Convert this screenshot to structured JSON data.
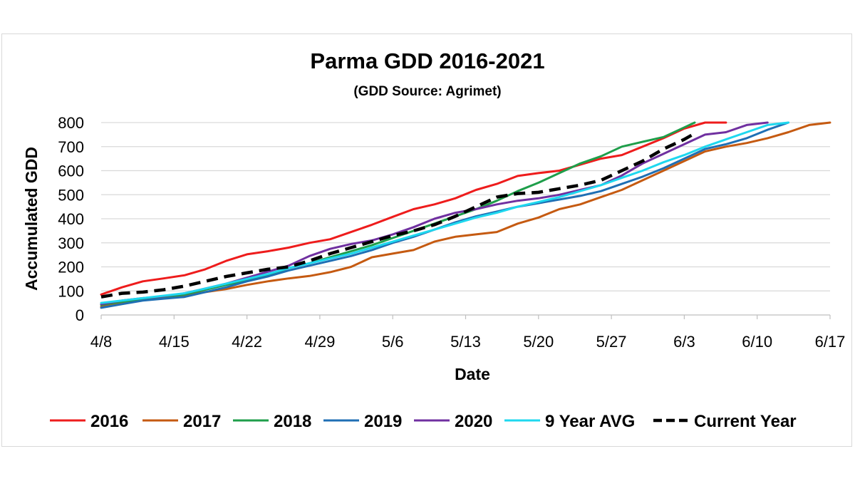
{
  "chart_data": {
    "type": "line",
    "title": "Parma GDD 2016-2021",
    "subtitle": "(GDD Source: Agrimet)",
    "xlabel": "Date",
    "ylabel": "Accumulated GDD",
    "x_tick_labels": [
      "4/8",
      "4/15",
      "4/22",
      "4/29",
      "5/6",
      "5/13",
      "5/20",
      "5/27",
      "6/3",
      "6/10",
      "6/17"
    ],
    "x_range_days": [
      0,
      70
    ],
    "y_ticks": [
      0,
      100,
      200,
      300,
      400,
      500,
      600,
      700,
      800
    ],
    "ylim": [
      0,
      800
    ],
    "grid": "horizontal",
    "legend_position": "bottom",
    "series": [
      {
        "name": "2016",
        "color": "#ee1c1c",
        "dash": "solid",
        "x": [
          0,
          2,
          4,
          6,
          8,
          10,
          12,
          14,
          16,
          18,
          20,
          22,
          24,
          26,
          28,
          30,
          32,
          34,
          36,
          38,
          40,
          42,
          44,
          46,
          48,
          50,
          52,
          54,
          56,
          58,
          60
        ],
        "y": [
          85,
          115,
          140,
          152,
          165,
          190,
          225,
          252,
          265,
          280,
          300,
          315,
          345,
          375,
          408,
          440,
          460,
          485,
          520,
          545,
          578,
          590,
          600,
          625,
          650,
          665,
          700,
          735,
          775,
          800,
          800
        ]
      },
      {
        "name": "2017",
        "color": "#c55a11",
        "dash": "solid",
        "x": [
          0,
          2,
          4,
          6,
          8,
          10,
          12,
          14,
          16,
          18,
          20,
          22,
          24,
          26,
          28,
          30,
          32,
          34,
          36,
          38,
          40,
          42,
          44,
          46,
          48,
          50,
          52,
          54,
          56,
          58,
          60,
          62,
          64,
          66,
          68,
          70
        ],
        "y": [
          35,
          50,
          62,
          70,
          80,
          95,
          108,
          125,
          140,
          152,
          162,
          178,
          200,
          240,
          255,
          270,
          305,
          325,
          335,
          345,
          380,
          405,
          440,
          460,
          490,
          520,
          560,
          600,
          640,
          680,
          700,
          715,
          735,
          760,
          790,
          800
        ]
      },
      {
        "name": "2018",
        "color": "#1e9e4a",
        "dash": "solid",
        "x": [
          0,
          2,
          4,
          6,
          8,
          10,
          12,
          14,
          16,
          18,
          20,
          22,
          24,
          26,
          28,
          30,
          32,
          34,
          36,
          38,
          40,
          42,
          44,
          46,
          48,
          50,
          52,
          54,
          56,
          57
        ],
        "y": [
          42,
          55,
          65,
          75,
          85,
          105,
          125,
          145,
          165,
          195,
          215,
          240,
          265,
          290,
          320,
          350,
          380,
          410,
          440,
          475,
          515,
          550,
          590,
          630,
          660,
          700,
          720,
          740,
          780,
          800
        ]
      },
      {
        "name": "2019",
        "color": "#1f6fb4",
        "dash": "solid",
        "x": [
          0,
          2,
          4,
          6,
          8,
          10,
          12,
          14,
          16,
          18,
          20,
          22,
          24,
          26,
          28,
          30,
          32,
          34,
          36,
          38,
          40,
          42,
          44,
          46,
          48,
          50,
          52,
          54,
          56,
          58,
          60,
          62,
          64,
          66
        ],
        "y": [
          30,
          45,
          60,
          68,
          75,
          95,
          115,
          140,
          160,
          185,
          205,
          225,
          245,
          270,
          300,
          325,
          355,
          385,
          410,
          430,
          450,
          465,
          480,
          495,
          515,
          545,
          575,
          610,
          650,
          690,
          710,
          735,
          770,
          800
        ]
      },
      {
        "name": "2020",
        "color": "#7030a0",
        "dash": "solid",
        "x": [
          0,
          2,
          4,
          6,
          8,
          10,
          12,
          14,
          16,
          18,
          20,
          22,
          24,
          26,
          28,
          30,
          32,
          34,
          36,
          38,
          40,
          42,
          44,
          46,
          48,
          50,
          52,
          54,
          56,
          58,
          60,
          62,
          64
        ],
        "y": [
          45,
          60,
          70,
          78,
          90,
          110,
          130,
          155,
          180,
          205,
          245,
          275,
          295,
          310,
          335,
          365,
          400,
          425,
          440,
          460,
          475,
          485,
          500,
          520,
          540,
          580,
          630,
          670,
          710,
          750,
          760,
          790,
          800
        ]
      },
      {
        "name": "9 Year AVG",
        "color": "#1ed8ef",
        "dash": "solid",
        "x": [
          0,
          2,
          4,
          6,
          8,
          10,
          12,
          14,
          16,
          18,
          20,
          22,
          24,
          26,
          28,
          30,
          32,
          34,
          36,
          38,
          40,
          42,
          44,
          46,
          48,
          50,
          52,
          54,
          56,
          58,
          60,
          62,
          64,
          66
        ],
        "y": [
          50,
          60,
          70,
          80,
          90,
          110,
          130,
          150,
          170,
          195,
          215,
          235,
          255,
          280,
          305,
          330,
          355,
          380,
          405,
          425,
          450,
          470,
          490,
          515,
          540,
          570,
          600,
          635,
          665,
          700,
          730,
          760,
          790,
          800
        ]
      },
      {
        "name": "Current Year",
        "color": "#000000",
        "dash": "dashed",
        "x": [
          0,
          2,
          4,
          6,
          8,
          10,
          12,
          14,
          16,
          18,
          20,
          22,
          24,
          26,
          28,
          30,
          32,
          34,
          36,
          38,
          40,
          42,
          44,
          46,
          48,
          50,
          52,
          54,
          56,
          57
        ],
        "y": [
          75,
          90,
          95,
          105,
          120,
          140,
          160,
          175,
          190,
          200,
          225,
          255,
          280,
          305,
          330,
          350,
          375,
          410,
          450,
          490,
          505,
          510,
          525,
          540,
          560,
          600,
          640,
          690,
          730,
          755
        ]
      }
    ]
  }
}
